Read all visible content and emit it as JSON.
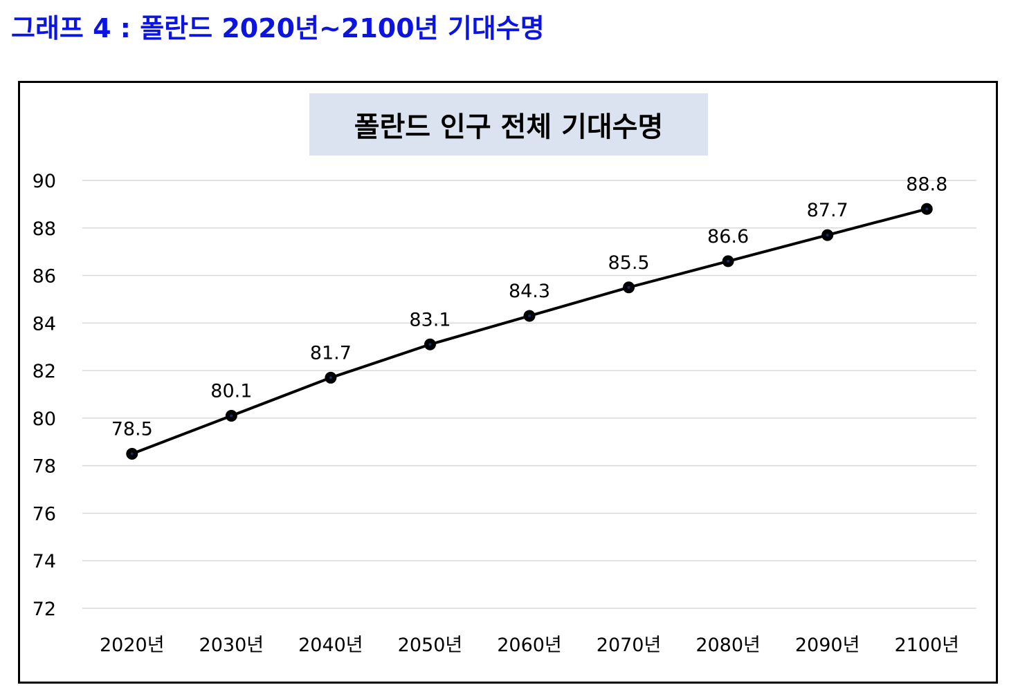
{
  "heading": "그래프 4 : 폴란드 2020년~2100년 기대수명",
  "colors": {
    "heading": "#0b14e0",
    "title_bg": "#dbe3f1",
    "line": "#000000",
    "grid": "#d9d9d9"
  },
  "chart_data": {
    "type": "line",
    "title": "폴란드 인구 전체 기대수명",
    "xlabel": "",
    "ylabel": "",
    "categories": [
      "2020년",
      "2030년",
      "2040년",
      "2050년",
      "2060년",
      "2070년",
      "2080년",
      "2090년",
      "2100년"
    ],
    "series": [
      {
        "values": [
          78.5,
          80.1,
          81.7,
          83.1,
          84.3,
          85.5,
          86.6,
          87.7,
          88.8
        ]
      }
    ],
    "ylim": [
      72,
      90
    ],
    "yticks": [
      72,
      74,
      76,
      78,
      80,
      82,
      84,
      86,
      88,
      90
    ],
    "grid": true,
    "legend": "none",
    "data_labels": true
  }
}
